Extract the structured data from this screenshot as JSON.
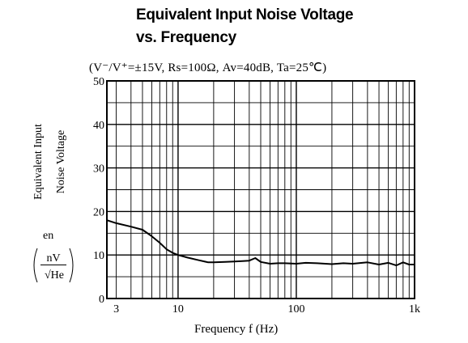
{
  "title_line1": "Equivalent Input Noise Voltage",
  "title_line2": "vs. Frequency",
  "conditions": "(V⁻/V⁺=±15V,  Rs=100Ω,  Av=40dB,  Ta=25℃)",
  "y_label_line1": "Equivalent Input",
  "y_label_line2": "Noise Voltage",
  "y_symbol": "en",
  "y_unit_num": "nV",
  "y_unit_den": "√He",
  "x_label": "Frequency  f  (Hz)",
  "chart_data": {
    "type": "line",
    "title": "Equivalent Input Noise Voltage vs. Frequency",
    "xlabel": "Frequency f (Hz)",
    "ylabel": "Equivalent Input Noise Voltage en (nV/√He)",
    "x_scale": "log",
    "xlim": [
      2.5,
      1000
    ],
    "ylim": [
      0,
      50
    ],
    "grid": true,
    "x_ticks": [
      {
        "value": 3,
        "label": "3"
      },
      {
        "value": 10,
        "label": "10"
      },
      {
        "value": 100,
        "label": "100"
      },
      {
        "value": 1000,
        "label": "1k"
      }
    ],
    "y_ticks": [
      {
        "value": 0,
        "label": "0"
      },
      {
        "value": 10,
        "label": "10"
      },
      {
        "value": 20,
        "label": "20"
      },
      {
        "value": 30,
        "label": "30"
      },
      {
        "value": 40,
        "label": "40"
      },
      {
        "value": 50,
        "label": "50"
      }
    ],
    "series": [
      {
        "x": [
          2.5,
          3,
          4,
          5,
          6,
          7,
          8,
          9,
          10,
          12,
          15,
          18,
          20,
          25,
          30,
          35,
          40,
          45,
          50,
          60,
          70,
          80,
          100,
          120,
          150,
          200,
          250,
          300,
          400,
          500,
          600,
          700,
          800,
          900,
          1000
        ],
        "y": [
          18,
          17.3,
          16.5,
          15.8,
          14.3,
          12.8,
          11.3,
          10.5,
          10.0,
          9.4,
          8.8,
          8.3,
          8.3,
          8.4,
          8.5,
          8.6,
          8.7,
          9.3,
          8.4,
          8.0,
          8.1,
          8.1,
          8.0,
          8.2,
          8.1,
          7.9,
          8.1,
          8.0,
          8.3,
          7.8,
          8.2,
          7.6,
          8.3,
          7.8,
          7.8
        ]
      }
    ]
  }
}
